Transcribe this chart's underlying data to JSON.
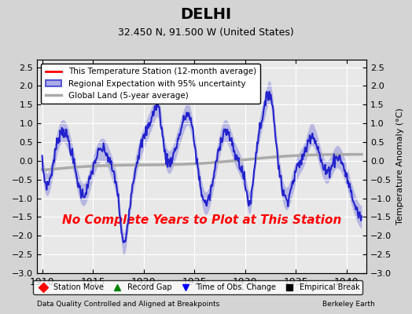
{
  "title": "DELHI",
  "subtitle": "32.450 N, 91.500 W (United States)",
  "ylabel": "Temperature Anomaly (°C)",
  "xlim": [
    1909.5,
    1942.0
  ],
  "ylim": [
    -3.0,
    2.7
  ],
  "yticks": [
    -3,
    -2.5,
    -2,
    -1.5,
    -1,
    -0.5,
    0,
    0.5,
    1,
    1.5,
    2,
    2.5
  ],
  "xticks": [
    1910,
    1915,
    1920,
    1925,
    1930,
    1935,
    1940
  ],
  "bg_color": "#e8e8e8",
  "annotation_text": "No Complete Years to Plot at This Station",
  "annotation_color": "red",
  "footer_left": "Data Quality Controlled and Aligned at Breakpoints",
  "footer_right": "Berkeley Earth",
  "legend_items": [
    {
      "label": "This Temperature Station (12-month average)",
      "color": "red",
      "lw": 2,
      "style": "-"
    },
    {
      "label": "Regional Expectation with 95% uncertainty",
      "color": "#5555cc",
      "lw": 2,
      "style": "-",
      "fill": true
    },
    {
      "label": "Global Land (5-year average)",
      "color": "#aaaaaa",
      "lw": 3,
      "style": "-"
    }
  ],
  "bottom_legend": [
    {
      "label": "Station Move",
      "color": "red",
      "marker": "D"
    },
    {
      "label": "Record Gap",
      "color": "green",
      "marker": "^"
    },
    {
      "label": "Time of Obs. Change",
      "color": "blue",
      "marker": "v"
    },
    {
      "label": "Empirical Break",
      "color": "black",
      "marker": "s"
    }
  ]
}
